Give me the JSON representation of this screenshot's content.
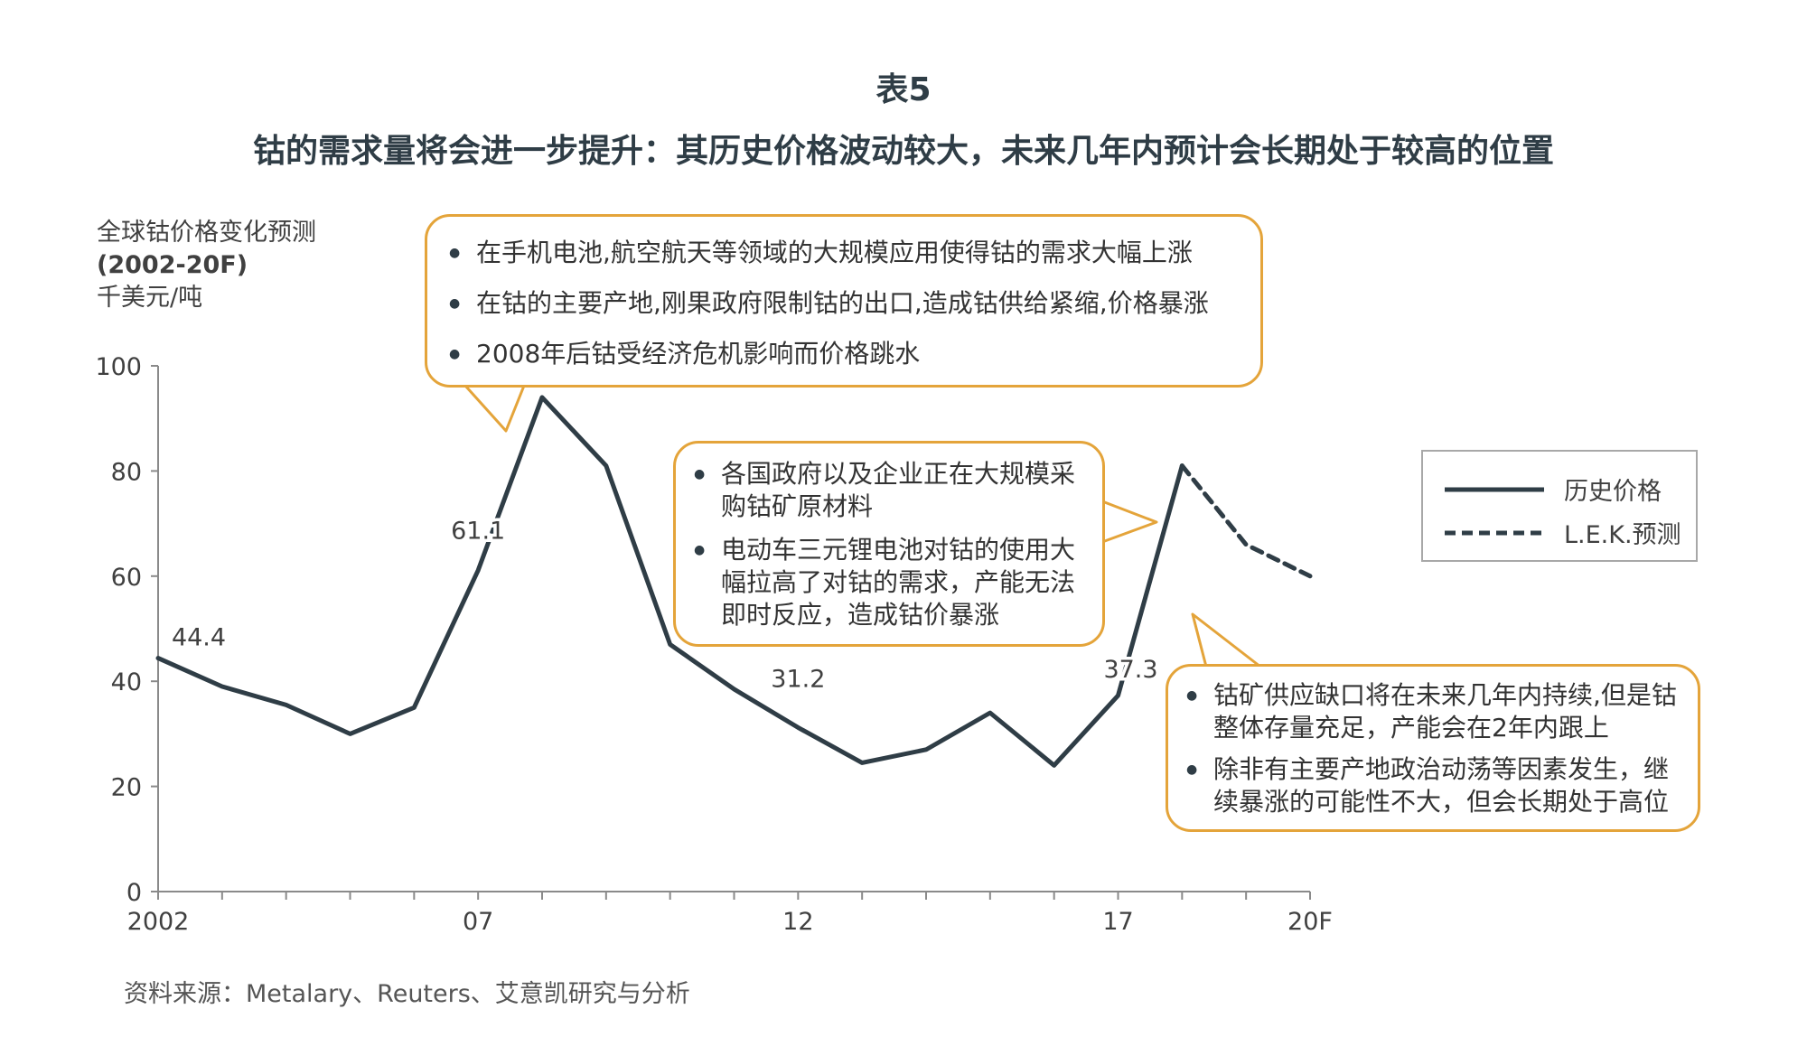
{
  "title": {
    "line1": "表5",
    "line2": "钴的需求量将会进一步提升：其历史价格波动较大，未来几年内预计会长期处于较高的位置"
  },
  "ylabel": {
    "line1": "全球钴价格变化预测",
    "line2": "(2002-20F)",
    "line3": "千美元/吨"
  },
  "callouts": {
    "top": [
      "在手机电池,航空航天等领域的大规模应用使得钴的需求大幅上涨",
      "在钴的主要产地,刚果政府限制钴的出口,造成钴供给紧缩,价格暴涨",
      "2008年后钴受经济危机影响而价格跳水"
    ],
    "middle": [
      "各国政府以及企业正在大规模采购钴矿原材料",
      "电动车三元锂电池对钴的使用大幅拉高了对钴的需求，产能无法即时反应，造成钴价暴涨"
    ],
    "right": [
      "钴矿供应缺口将在未来几年内持续,但是钴整体存量充足，产能会在2年内跟上",
      "除非有主要产地政治动荡等因素发生，继续暴涨的可能性不大，但会长期处于高位"
    ]
  },
  "legend": {
    "historical": "历史价格",
    "forecast": "L.E.K.预测"
  },
  "source": "资料来源：Metalary、Reuters、艾意凯研究与分析",
  "colors": {
    "line": "#2f3d46",
    "callout_border": "#e4a43a",
    "axis": "#8a8a8a"
  },
  "chart_data": {
    "type": "line",
    "x": [
      2002,
      2003,
      2004,
      2005,
      2006,
      2007,
      2008,
      2009,
      2010,
      2011,
      2012,
      2013,
      2014,
      2015,
      2016,
      2017,
      2018,
      2019,
      2020
    ],
    "x_tick_labels": [
      {
        "x": 2002,
        "label": "2002"
      },
      {
        "x": 2007,
        "label": "07"
      },
      {
        "x": 2012,
        "label": "12"
      },
      {
        "x": 2017,
        "label": "17"
      },
      {
        "x": 2020,
        "label": "20F"
      }
    ],
    "y_ticks": [
      0,
      20,
      40,
      60,
      80,
      100
    ],
    "ylim": [
      0,
      100
    ],
    "series": [
      {
        "name": "历史价格",
        "style": "solid",
        "x": [
          2002,
          2003,
          2004,
          2005,
          2006,
          2007,
          2008,
          2009,
          2010,
          2011,
          2012,
          2013,
          2014,
          2015,
          2016,
          2017,
          2018
        ],
        "values": [
          44.4,
          39,
          35.5,
          30,
          35,
          61.1,
          94,
          81,
          47,
          38.5,
          31.2,
          24.5,
          27,
          34,
          24,
          37.3,
          81
        ]
      },
      {
        "name": "L.E.K.预测",
        "style": "dashed",
        "x": [
          2018,
          2019,
          2020
        ],
        "values": [
          81,
          66,
          60
        ]
      }
    ],
    "data_labels": [
      {
        "x": 2002,
        "y": 44.4,
        "text": "44.4"
      },
      {
        "x": 2007,
        "y": 61.1,
        "text": "61.1"
      },
      {
        "x": 2012,
        "y": 31.2,
        "text": "31.2"
      },
      {
        "x": 2017,
        "y": 37.3,
        "text": "37.3"
      }
    ]
  }
}
